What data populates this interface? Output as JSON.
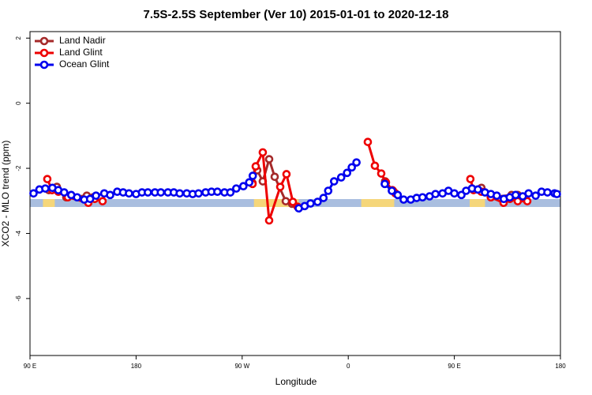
{
  "chart_data": {
    "type": "line",
    "title": "7.5S-2.5S September (Ver 10)   2015-01-01 to 2020-12-18",
    "xlabel": "Longitude",
    "ylabel": "XCO2 - MLO trend (ppm)",
    "xlim": [
      90,
      540
    ],
    "ylim": [
      -7.75,
      2.2
    ],
    "xticks": [
      {
        "value": 90,
        "label": "90 E"
      },
      180,
      {
        "value": 270,
        "label": "90 W"
      },
      {
        "value": 360,
        "label": "0"
      },
      {
        "value": 450,
        "label": "90 E"
      },
      {
        "value": 540,
        "label": "180"
      }
    ],
    "yticks": [
      -6,
      -4,
      -2,
      0,
      2
    ],
    "legend": "top-left",
    "land_regions": [
      [
        101,
        111
      ],
      [
        280,
        318
      ],
      [
        371,
        399
      ],
      [
        463,
        476
      ]
    ],
    "land_color": "#f5d67a",
    "ocean_color": "#a9bedf",
    "series": [
      {
        "name": "Land Nadir",
        "color": "#a52a2a",
        "x": [
          106,
          112.8,
          120.8,
          138.2,
          143.6,
          200,
          278.8,
          282.8,
          287.5,
          292.9,
          297.6,
          307,
          312.3,
          350,
          391.3,
          398,
          430,
          465,
          473,
          481,
          498.5,
          503.8
        ],
        "values": [
          -2.67,
          -2.57,
          -2.89,
          -2.84,
          -2.89,
          null,
          -2.45,
          -2.06,
          -2.4,
          -1.72,
          -2.26,
          -3.01,
          -3.09,
          null,
          -2.4,
          -2.69,
          null,
          -2.62,
          -2.6,
          -2.89,
          -2.82,
          -2.82
        ]
      },
      {
        "name": "Land Glint",
        "color": "#ee0000",
        "x": [
          104.7,
          108.7,
          114.1,
          122.1,
          139.5,
          144.9,
          151.6,
          200,
          278.8,
          281.5,
          287.5,
          292.9,
          302.3,
          307.6,
          313,
          317,
          350,
          376.6,
          382.6,
          388,
          392,
          397.4,
          400,
          430,
          463.6,
          466.3,
          473,
          481,
          491.8,
          497.1,
          503.8,
          511.9
        ],
        "values": [
          -2.33,
          -2.67,
          -2.72,
          -2.89,
          -3.06,
          -2.94,
          -3.01,
          null,
          -2.48,
          -1.94,
          -1.51,
          -3.6,
          -2.57,
          -2.18,
          -3.03,
          -3.18,
          null,
          -1.19,
          -1.92,
          -2.16,
          -2.43,
          -2.67,
          -2.77,
          null,
          -2.33,
          -2.67,
          -2.72,
          -2.89,
          -3.06,
          -2.94,
          -3.01,
          -3.01
        ]
      },
      {
        "name": "Ocean Glint",
        "color": "#0000ee",
        "x": [
          93,
          98,
          103,
          109,
          114,
          119,
          125,
          130,
          136,
          141,
          146,
          153,
          158,
          164,
          169,
          174,
          180,
          185,
          190,
          196,
          201,
          207,
          212,
          217,
          223,
          228,
          233,
          239,
          244,
          249,
          255,
          260,
          265,
          271,
          276,
          279,
          300,
          318,
          323,
          328,
          334,
          339,
          343,
          348,
          354,
          359,
          363,
          367,
          380,
          391,
          397,
          402,
          407,
          413,
          418,
          423,
          429,
          434,
          440,
          445,
          450,
          456,
          460,
          465,
          470,
          476,
          481,
          486,
          492,
          497,
          502,
          508,
          513,
          519,
          524,
          529,
          535,
          537
        ],
        "values": [
          -2.77,
          -2.65,
          -2.62,
          -2.6,
          -2.67,
          -2.74,
          -2.82,
          -2.89,
          -2.96,
          -2.94,
          -2.84,
          -2.77,
          -2.82,
          -2.72,
          -2.74,
          -2.77,
          -2.79,
          -2.74,
          -2.74,
          -2.74,
          -2.74,
          -2.74,
          -2.74,
          -2.77,
          -2.77,
          -2.79,
          -2.77,
          -2.74,
          -2.72,
          -2.72,
          -2.74,
          -2.74,
          -2.62,
          -2.55,
          -2.43,
          -2.23,
          null,
          -3.23,
          -3.16,
          -3.08,
          -3.03,
          -2.91,
          -2.69,
          -2.4,
          -2.28,
          -2.14,
          -1.97,
          -1.82,
          null,
          -2.48,
          -2.69,
          -2.82,
          -2.96,
          -2.96,
          -2.91,
          -2.89,
          -2.86,
          -2.79,
          -2.77,
          -2.69,
          -2.77,
          -2.82,
          -2.69,
          -2.62,
          -2.65,
          -2.74,
          -2.79,
          -2.84,
          -2.94,
          -2.89,
          -2.82,
          -2.86,
          -2.77,
          -2.84,
          -2.72,
          -2.74,
          -2.77,
          -2.79
        ]
      }
    ]
  }
}
